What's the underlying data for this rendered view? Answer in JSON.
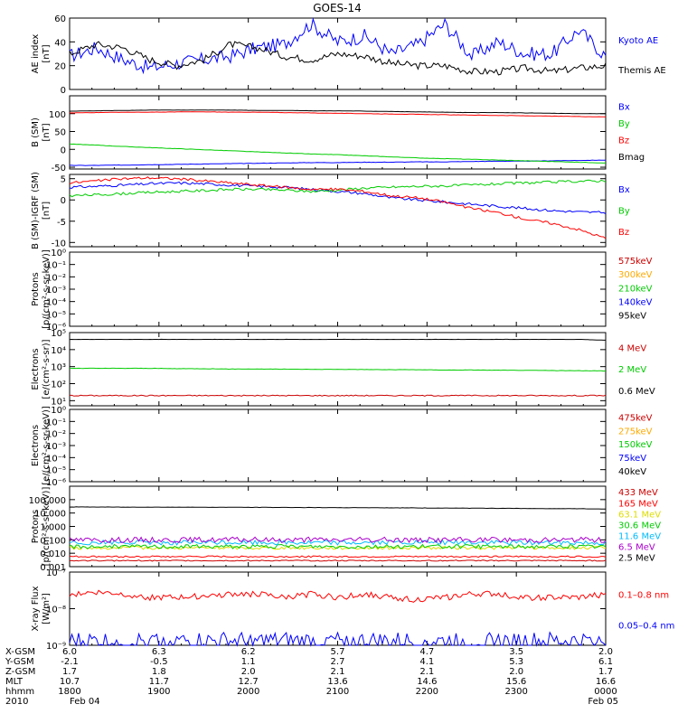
{
  "title": "GOES-14",
  "colors": {
    "blue": "#0000ff",
    "black": "#000000",
    "red": "#ff0000",
    "green": "#00cc00",
    "orange": "#ffaa00",
    "yellow": "#dddd00",
    "cyan": "#00bbff",
    "darkred": "#cc0000",
    "purple": "#aa00cc"
  },
  "chart_data": [
    {
      "type": "line",
      "ylabel": "AE index [nT]",
      "ylim": [
        0,
        60
      ],
      "log": false,
      "ticks": [
        "0",
        "20",
        "40",
        "60"
      ],
      "tickvals": [
        0,
        20,
        40,
        60
      ],
      "series": [
        {
          "name": "Kyoto AE",
          "color": "blue",
          "base": [
            28,
            35,
            25,
            18,
            22,
            25,
            28,
            35,
            38,
            55,
            40,
            45,
            30,
            38,
            55,
            28,
            40,
            30,
            30,
            50,
            28
          ],
          "noise": 6
        },
        {
          "name": "Themis AE",
          "color": "black",
          "base": [
            30,
            38,
            35,
            25,
            20,
            25,
            38,
            35,
            28,
            25,
            30,
            28,
            22,
            20,
            20,
            15,
            15,
            18,
            15,
            18,
            20
          ],
          "noise": 3
        }
      ]
    },
    {
      "type": "line",
      "ylabel": "B (SM) [nT]",
      "ylim": [
        -55,
        150
      ],
      "log": false,
      "ticks": [
        "-50",
        "0",
        "50",
        "100"
      ],
      "tickvals": [
        -50,
        0,
        50,
        100
      ],
      "series": [
        {
          "name": "Bx",
          "color": "blue",
          "base": [
            -45,
            -45,
            -44,
            -43,
            -42,
            -41,
            -40,
            -39,
            -38,
            -37,
            -37,
            -36,
            -36,
            -35,
            -35,
            -34,
            -33,
            -33,
            -32,
            -31,
            -30
          ],
          "noise": 0.5
        },
        {
          "name": "By",
          "color": "green",
          "base": [
            15,
            12,
            8,
            5,
            2,
            -1,
            -4,
            -7,
            -10,
            -13,
            -15,
            -18,
            -21,
            -24,
            -26,
            -28,
            -30,
            -32,
            -34,
            -36,
            -38
          ],
          "noise": 0.5
        },
        {
          "name": "Bz",
          "color": "red",
          "base": [
            102,
            103,
            104,
            104,
            105,
            105,
            104,
            104,
            103,
            102,
            101,
            100,
            99,
            98,
            97,
            96,
            95,
            94,
            93,
            92,
            91
          ],
          "noise": 0.4
        },
        {
          "name": "Bmag",
          "color": "black",
          "base": [
            107,
            108,
            109,
            110,
            110,
            110,
            110,
            109,
            109,
            108,
            108,
            107,
            106,
            105,
            104,
            103,
            103,
            102,
            101,
            100,
            100
          ],
          "noise": 0.3
        }
      ]
    },
    {
      "type": "line",
      "ylabel": "B (SM)-IGRF (SM) [nT]",
      "ylim": [
        -11,
        6
      ],
      "log": false,
      "ticks": [
        "-10",
        "-5",
        "0",
        "5"
      ],
      "tickvals": [
        -10,
        -5,
        0,
        5
      ],
      "series": [
        {
          "name": "Bx",
          "color": "blue",
          "base": [
            3,
            3.2,
            3.5,
            3.8,
            4,
            3.8,
            3.5,
            3.2,
            3,
            2.5,
            2,
            1.5,
            0.5,
            0,
            -0.5,
            -1,
            -1.5,
            -2,
            -2.5,
            -2.8,
            -3
          ],
          "noise": 0.3
        },
        {
          "name": "By",
          "color": "green",
          "base": [
            1,
            1.2,
            1.5,
            1.8,
            2,
            2.2,
            2.5,
            2.5,
            2.3,
            2,
            2.3,
            2.8,
            3,
            3.2,
            3.3,
            3.5,
            3.8,
            4,
            4.2,
            4.4,
            4.5
          ],
          "noise": 0.3
        },
        {
          "name": "Bz",
          "color": "red",
          "base": [
            4,
            4.5,
            5,
            5.2,
            5,
            4.5,
            4,
            3.5,
            3,
            2.5,
            2.5,
            2,
            1,
            0.5,
            -0.5,
            -2,
            -3,
            -4.5,
            -5.5,
            -7,
            -9
          ],
          "noise": 0.3
        }
      ]
    },
    {
      "type": "line",
      "ylabel": "Protons [p/(cm²-s-sr-keV)]",
      "ylim": [
        -6,
        0
      ],
      "log": true,
      "ticks": [
        "10⁻⁶",
        "10⁻⁵",
        "10⁻⁴",
        "10⁻³",
        "10⁻²",
        "10⁻¹",
        "10⁰"
      ],
      "tickvals": [
        -6,
        -5,
        -4,
        -3,
        -2,
        -1,
        0
      ],
      "series": [
        {
          "name": "575keV",
          "color": "darkred",
          "base": [],
          "noise": 0
        },
        {
          "name": "300keV",
          "color": "orange",
          "base": [],
          "noise": 0
        },
        {
          "name": "210keV",
          "color": "green",
          "base": [],
          "noise": 0
        },
        {
          "name": "140keV",
          "color": "blue",
          "base": [],
          "noise": 0
        },
        {
          "name": "95keV",
          "color": "black",
          "base": [],
          "noise": 0
        }
      ]
    },
    {
      "type": "line",
      "ylabel": "Electrons [e/(cm²-s-sr)]",
      "ylim": [
        0.7,
        5
      ],
      "log": true,
      "ticks": [
        "10¹",
        "10²",
        "10³",
        "10⁴",
        "10⁵"
      ],
      "tickvals": [
        1,
        2,
        3,
        4,
        5
      ],
      "series": [
        {
          "name": "4 MeV",
          "color": "darkred",
          "base": [
            1.3,
            1.3,
            1.3,
            1.3,
            1.3,
            1.3,
            1.3,
            1.3,
            1.3,
            1.3,
            1.3,
            1.3,
            1.3,
            1.3,
            1.3,
            1.3,
            1.3,
            1.3,
            1.3,
            1.3,
            1.3
          ],
          "noise": 0.03
        },
        {
          "name": "2 MeV",
          "color": "green",
          "base": [
            2.9,
            2.9,
            2.9,
            2.9,
            2.88,
            2.88,
            2.86,
            2.86,
            2.85,
            2.84,
            2.84,
            2.83,
            2.82,
            2.82,
            2.8,
            2.8,
            2.79,
            2.78,
            2.77,
            2.76,
            2.75
          ],
          "noise": 0.01
        },
        {
          "name": "0.6 MeV",
          "color": "black",
          "base": [
            4.6,
            4.6,
            4.6,
            4.6,
            4.6,
            4.6,
            4.6,
            4.6,
            4.6,
            4.6,
            4.6,
            4.6,
            4.6,
            4.6,
            4.6,
            4.6,
            4.6,
            4.6,
            4.6,
            4.6,
            4.55
          ],
          "noise": 0.005
        }
      ]
    },
    {
      "type": "line",
      "ylabel": "Electrons [e/(cm²-s-sr-keV)]",
      "ylim": [
        -6,
        0
      ],
      "log": true,
      "ticks": [
        "10⁻⁶",
        "10⁻⁵",
        "10⁻⁴",
        "10⁻³",
        "10⁻²",
        "10⁻¹",
        "10⁰"
      ],
      "tickvals": [
        -6,
        -5,
        -4,
        -3,
        -2,
        -1,
        0
      ],
      "series": [
        {
          "name": "475keV",
          "color": "darkred",
          "base": [],
          "noise": 0
        },
        {
          "name": "275keV",
          "color": "orange",
          "base": [],
          "noise": 0
        },
        {
          "name": "150keV",
          "color": "green",
          "base": [],
          "noise": 0
        },
        {
          "name": "75keV",
          "color": "blue",
          "base": [],
          "noise": 0
        },
        {
          "name": "40keV",
          "color": "black",
          "base": [],
          "noise": 0
        }
      ]
    },
    {
      "type": "line",
      "ylabel": "Protons [p/(cm²-s-sr-keV)]",
      "ylim": [
        -3,
        3
      ],
      "log": true,
      "ticks": [
        "0.001",
        "0.010",
        "0.100",
        "1.000",
        "10.000",
        "100.000"
      ],
      "tickvals": [
        -3,
        -2,
        -1,
        0,
        1,
        2
      ],
      "series": [
        {
          "name": "433 MeV",
          "color": "darkred",
          "base": [],
          "noise": 0
        },
        {
          "name": "165 MeV",
          "color": "red",
          "base": [],
          "noise": 0
        },
        {
          "name": "63.1 MeV",
          "color": "yellow",
          "base": [
            -1.6,
            -1.6,
            -1.6,
            -1.6,
            -1.6,
            -1.6,
            -1.6,
            -1.6,
            -1.6,
            -1.6,
            -1.6,
            -1.6,
            -1.6,
            -1.6,
            -1.6,
            -1.6,
            -1.6,
            -1.6,
            -1.6,
            -1.6,
            -1.6
          ],
          "noise": 0.12
        },
        {
          "name": "30.6 MeV",
          "color": "green",
          "base": [
            -1.5,
            -1.5,
            -1.5,
            -1.5,
            -1.5,
            -1.5,
            -1.5,
            -1.5,
            -1.5,
            -1.5,
            -1.5,
            -1.5,
            -1.5,
            -1.5,
            -1.5,
            -1.5,
            -1.5,
            -1.5,
            -1.5,
            -1.5,
            -1.5
          ],
          "noise": 0.15
        },
        {
          "name": "11.6 MeV",
          "color": "cyan",
          "base": [
            -1.2,
            -1.2,
            -1.2,
            -1.2,
            -1.2,
            -1.2,
            -1.2,
            -1.2,
            -1.2,
            -1.2,
            -1.2,
            -1.2,
            -1.2,
            -1.2,
            -1.2,
            -1.2,
            -1.2,
            -1.2,
            -1.2,
            -1.2,
            -1.2
          ],
          "noise": 0.18
        },
        {
          "name": "6.5 MeV",
          "color": "purple",
          "base": [
            -1.0,
            -1.0,
            -1.0,
            -1.0,
            -1.0,
            -1.0,
            -1.0,
            -1.0,
            -1.0,
            -1.0,
            -1.0,
            -1.0,
            -1.0,
            -1.0,
            -1.0,
            -1.0,
            -1.0,
            -1.0,
            -1.0,
            -1.0,
            -1.0
          ],
          "noise": 0.2
        },
        {
          "name": "2.5 MeV",
          "color": "black",
          "base": [
            1.45,
            1.45,
            1.44,
            1.44,
            1.44,
            1.43,
            1.43,
            1.42,
            1.42,
            1.41,
            1.4,
            1.4,
            1.39,
            1.38,
            1.37,
            1.36,
            1.35,
            1.34,
            1.33,
            1.32,
            1.3
          ],
          "noise": 0.01
        },
        {
          "name": "_low",
          "color": "red",
          "base": [
            -2.25,
            -2.25,
            -2.25,
            -2.25,
            -2.25,
            -2.25,
            -2.25,
            -2.25,
            -2.25,
            -2.25,
            -2.25,
            -2.25,
            -2.25,
            -2.25,
            -2.25,
            -2.25,
            -2.25,
            -2.25,
            -2.25,
            -2.25,
            -2.25
          ],
          "noise": 0.06
        },
        {
          "name": "_low2",
          "color": "darkred",
          "base": [
            -2.55,
            -2.55,
            -2.55,
            -2.55,
            -2.55,
            -2.55,
            -2.55,
            -2.55,
            -2.55,
            -2.55,
            -2.55,
            -2.55,
            -2.55,
            -2.55,
            -2.55,
            -2.55,
            -2.55,
            -2.55,
            -2.55,
            -2.55,
            -2.55
          ],
          "noise": 0.04
        }
      ]
    },
    {
      "type": "line",
      "ylabel": "X-ray Flux [W/m²]",
      "ylim": [
        -9,
        -7
      ],
      "log": true,
      "ticks": [
        "10⁻⁹",
        "10⁻⁸",
        "10⁻⁷"
      ],
      "tickvals": [
        -9,
        -8,
        -7
      ],
      "series": [
        {
          "name": "0.1–0.8 nm",
          "color": "red",
          "base": [
            -7.6,
            -7.55,
            -7.6,
            -7.7,
            -7.7,
            -7.65,
            -7.6,
            -7.6,
            -7.7,
            -7.6,
            -7.7,
            -7.6,
            -7.7,
            -7.75,
            -7.7,
            -7.6,
            -7.6,
            -7.7,
            -7.7,
            -7.7,
            -7.6
          ],
          "noise": 0.08
        },
        {
          "name": "0.05–0.4 nm",
          "color": "blue",
          "base": [
            -8.9,
            -8.9,
            -8.9,
            -8.9,
            -8.9,
            -8.9,
            -8.9,
            -8.9,
            -8.9,
            -8.9,
            -8.9,
            -8.9,
            -8.9,
            -8.9,
            -8.9,
            -8.9,
            -8.9,
            -8.9,
            -8.9,
            -8.9,
            -8.9
          ],
          "noise": 0.25
        }
      ]
    }
  ],
  "labels": {
    "p0": [
      {
        "t": "Kyoto AE",
        "c": "blue"
      },
      {
        "t": "Themis AE",
        "c": "black"
      }
    ],
    "p1": [
      {
        "t": "Bx",
        "c": "blue"
      },
      {
        "t": "By",
        "c": "green"
      },
      {
        "t": "Bz",
        "c": "red"
      },
      {
        "t": "Bmag",
        "c": "black"
      }
    ],
    "p2": [
      {
        "t": "Bx",
        "c": "blue"
      },
      {
        "t": "By",
        "c": "green"
      },
      {
        "t": "Bz",
        "c": "red"
      }
    ],
    "p3": [
      {
        "t": "575keV",
        "c": "darkred"
      },
      {
        "t": "300keV",
        "c": "orange"
      },
      {
        "t": "210keV",
        "c": "green"
      },
      {
        "t": "140keV",
        "c": "blue"
      },
      {
        "t": "95keV",
        "c": "black"
      }
    ],
    "p4": [
      {
        "t": "4 MeV",
        "c": "darkred"
      },
      {
        "t": "2 MeV",
        "c": "green"
      },
      {
        "t": "0.6 MeV",
        "c": "black"
      }
    ],
    "p5": [
      {
        "t": "475keV",
        "c": "darkred"
      },
      {
        "t": "275keV",
        "c": "orange"
      },
      {
        "t": "150keV",
        "c": "green"
      },
      {
        "t": "75keV",
        "c": "blue"
      },
      {
        "t": "40keV",
        "c": "black"
      }
    ],
    "p6": [
      {
        "t": "433 MeV",
        "c": "darkred"
      },
      {
        "t": "165 MeV",
        "c": "red"
      },
      {
        "t": "63.1 MeV",
        "c": "yellow"
      },
      {
        "t": "30.6 MeV",
        "c": "green"
      },
      {
        "t": "11.6 MeV",
        "c": "cyan"
      },
      {
        "t": "6.5 MeV",
        "c": "purple"
      },
      {
        "t": "2.5 MeV",
        "c": "black"
      }
    ],
    "p7": [
      {
        "t": "0.1–0.8 nm",
        "c": "red"
      },
      {
        "t": "0.05–0.4 nm",
        "c": "blue"
      }
    ]
  },
  "ylabels": [
    [
      "AE index",
      "[nT]"
    ],
    [
      "B (SM)",
      "[nT]"
    ],
    [
      "B (SM)-IGRF (SM)",
      "[nT]"
    ],
    [
      "Protons",
      "[p/(cm²-s-sr-keV)]"
    ],
    [
      "Electrons",
      "[e/(cm²-s-sr)]"
    ],
    [
      "Electrons",
      "[e/(cm²-s-sr-keV)]"
    ],
    [
      "Protons",
      "[p/(cm²-s-sr-keV)]"
    ],
    [
      "X-ray Flux",
      "[W/m²]"
    ]
  ],
  "xaxis": {
    "rows": [
      "X-GSM",
      "Y-GSM",
      "Z-GSM",
      "MLT",
      "hhmm",
      "2010"
    ],
    "columns": [
      [
        "6.0",
        "-2.1",
        "1.7",
        "10.7",
        "1800",
        "Feb 04"
      ],
      [
        "6.3",
        "-0.5",
        "1.8",
        "11.7",
        "1900",
        ""
      ],
      [
        "6.2",
        "1.1",
        "2.0",
        "12.7",
        "2000",
        ""
      ],
      [
        "5.7",
        "2.7",
        "2.1",
        "13.6",
        "2100",
        ""
      ],
      [
        "4.7",
        "4.1",
        "2.1",
        "14.6",
        "2200",
        ""
      ],
      [
        "3.5",
        "5.3",
        "2.0",
        "15.6",
        "2300",
        ""
      ],
      [
        "2.0",
        "6.1",
        "1.7",
        "16.6",
        "0000",
        "Feb 05"
      ]
    ]
  }
}
